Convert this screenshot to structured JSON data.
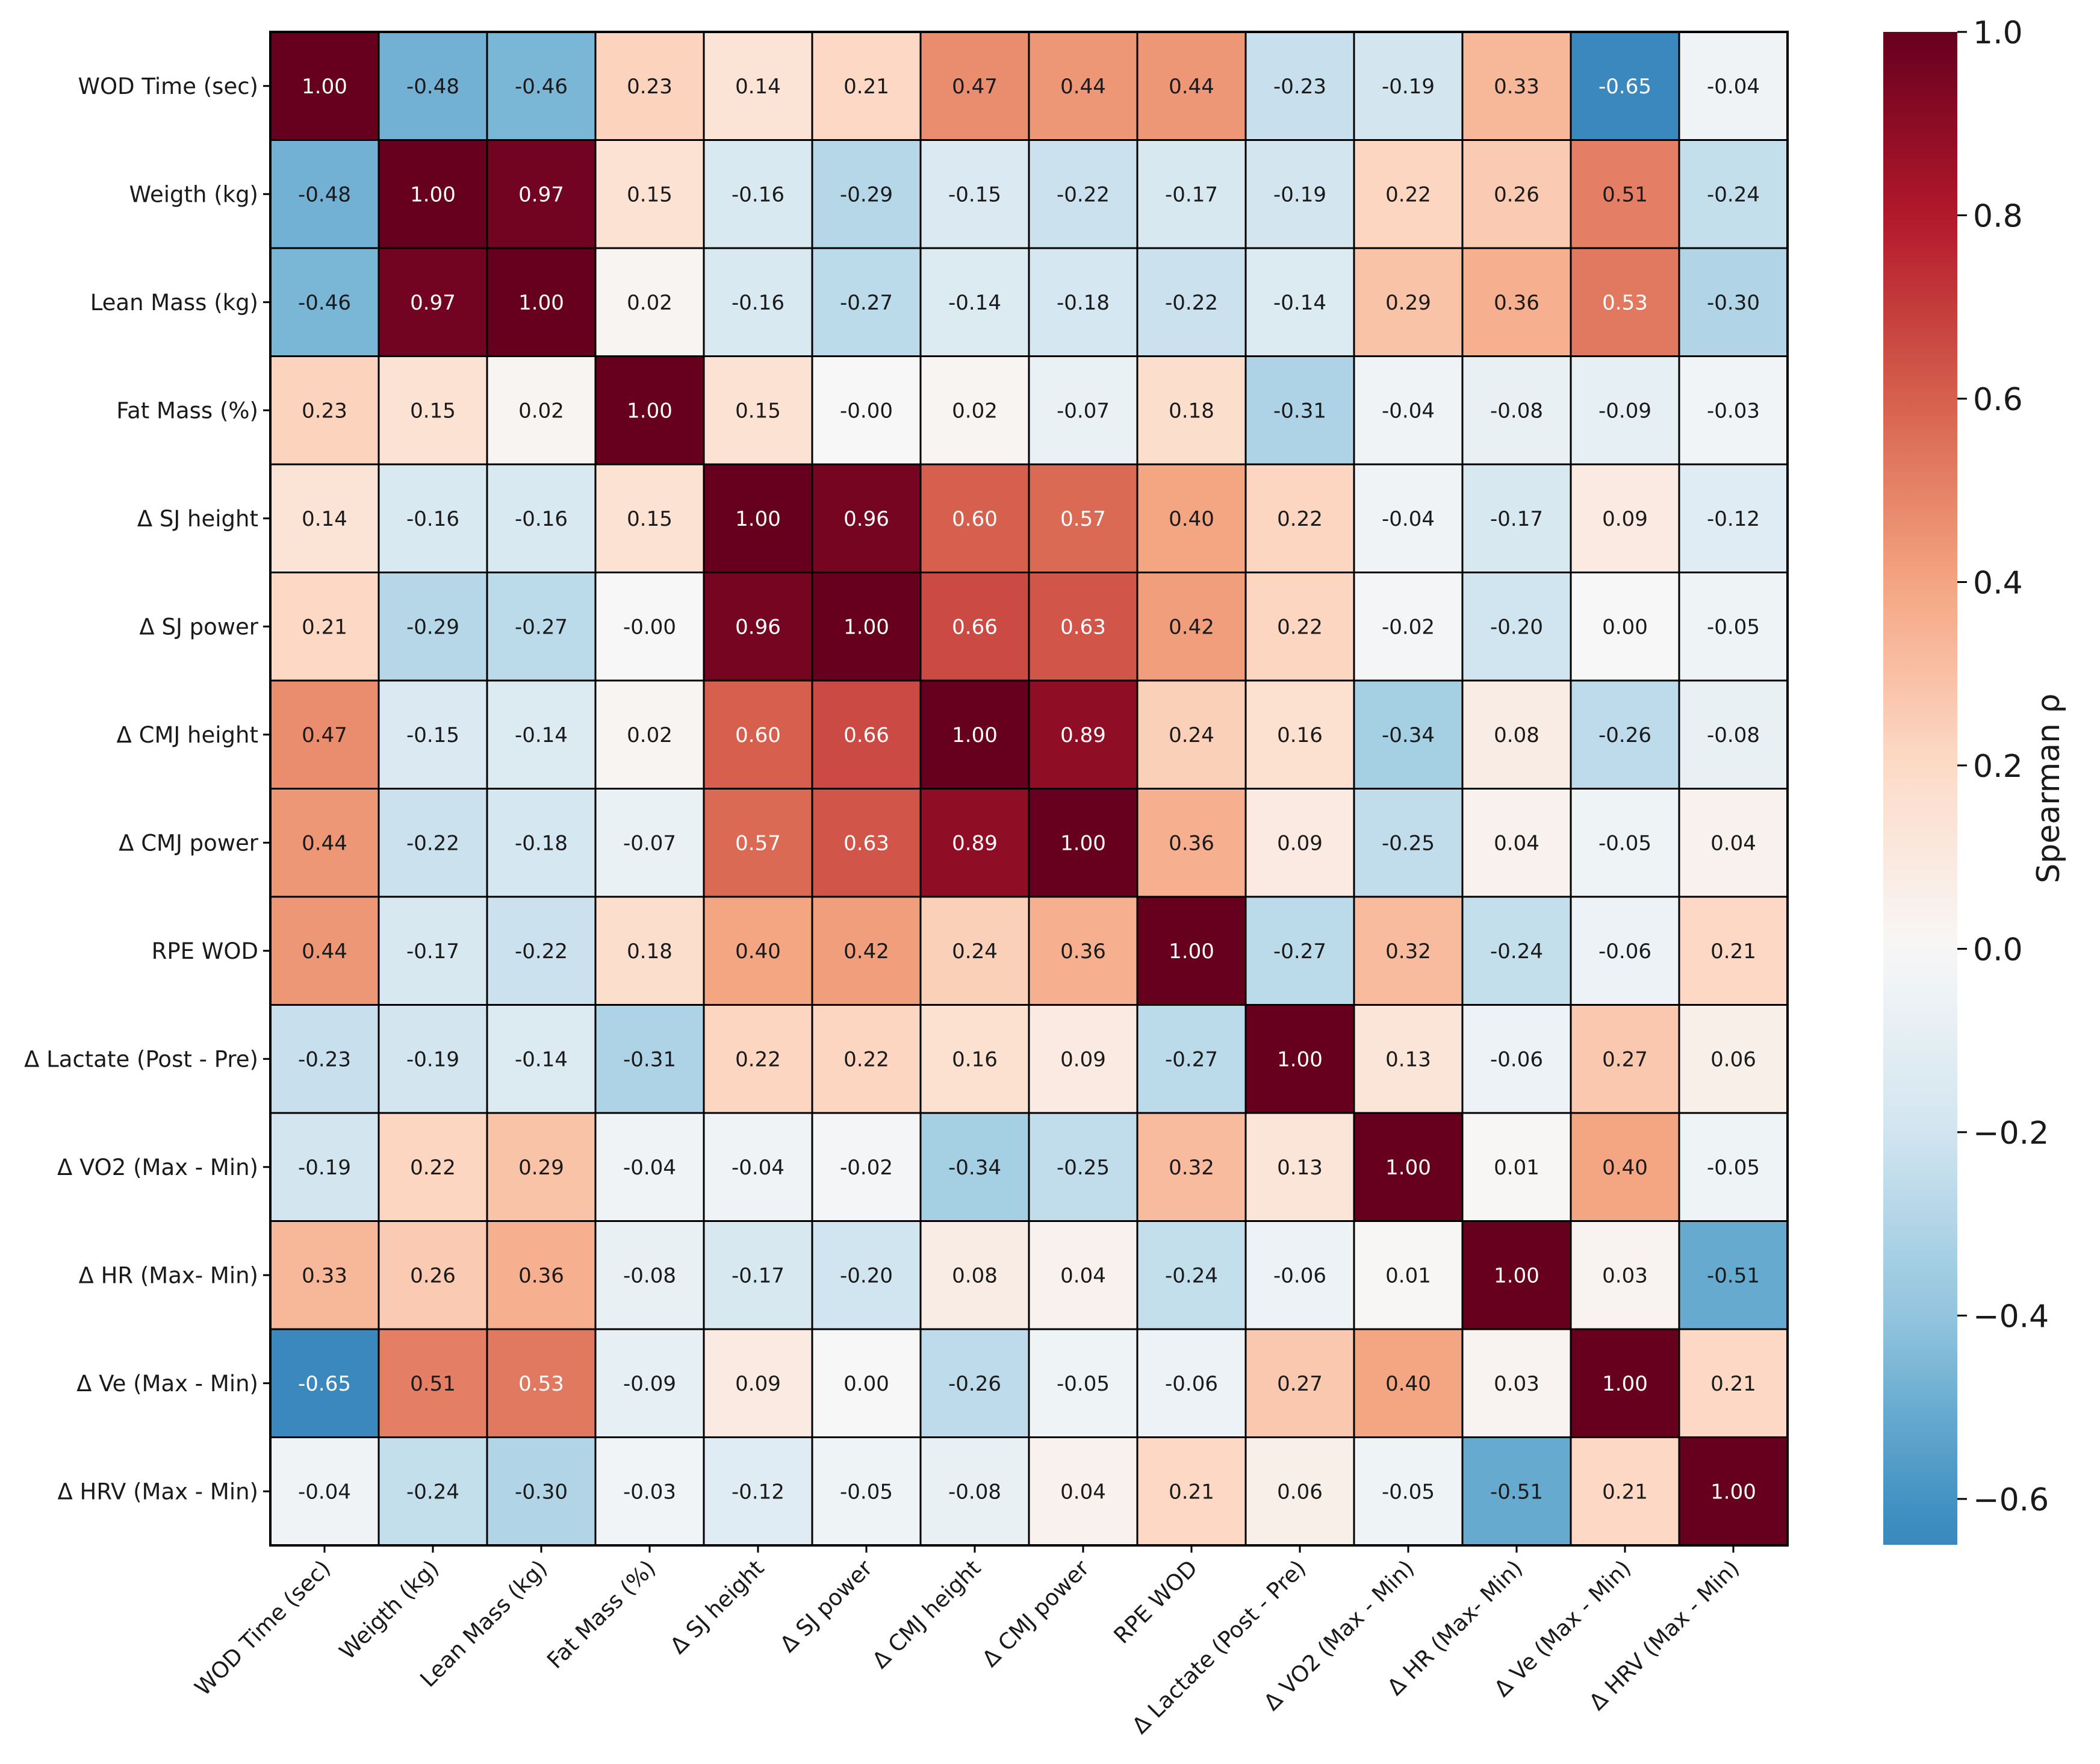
{
  "chart_data": {
    "type": "heatmap",
    "title": "",
    "xlabel": "",
    "ylabel": "",
    "variables": [
      "WOD Time (sec)",
      "Weigth (kg)",
      "Lean Mass (kg)",
      "Fat Mass (%)",
      "Δ SJ height",
      "Δ SJ power",
      "Δ CMJ height",
      "Δ CMJ power",
      "RPE WOD",
      "Δ Lactate (Post - Pre)",
      "Δ VO2 (Max - Min)",
      "Δ HR (Max- Min)",
      "Δ Ve (Max - Min)",
      "Δ HRV (Max - Min)"
    ],
    "values": [
      [
        1.0,
        -0.48,
        -0.46,
        0.23,
        0.14,
        0.21,
        0.47,
        0.44,
        0.44,
        -0.23,
        -0.19,
        0.33,
        -0.65,
        -0.04
      ],
      [
        -0.48,
        1.0,
        0.97,
        0.15,
        -0.16,
        -0.29,
        -0.15,
        -0.22,
        -0.17,
        -0.19,
        0.22,
        0.26,
        0.51,
        -0.24
      ],
      [
        -0.46,
        0.97,
        1.0,
        0.02,
        -0.16,
        -0.27,
        -0.14,
        -0.18,
        -0.22,
        -0.14,
        0.29,
        0.36,
        0.53,
        -0.3
      ],
      [
        0.23,
        0.15,
        0.02,
        1.0,
        0.15,
        -0.0,
        0.02,
        -0.07,
        0.18,
        -0.31,
        -0.04,
        -0.08,
        -0.09,
        -0.03
      ],
      [
        0.14,
        -0.16,
        -0.16,
        0.15,
        1.0,
        0.96,
        0.6,
        0.57,
        0.4,
        0.22,
        -0.04,
        -0.17,
        0.09,
        -0.12
      ],
      [
        0.21,
        -0.29,
        -0.27,
        -0.0,
        0.96,
        1.0,
        0.66,
        0.63,
        0.42,
        0.22,
        -0.02,
        -0.2,
        0.0,
        -0.05
      ],
      [
        0.47,
        -0.15,
        -0.14,
        0.02,
        0.6,
        0.66,
        1.0,
        0.89,
        0.24,
        0.16,
        -0.34,
        0.08,
        -0.26,
        -0.08
      ],
      [
        0.44,
        -0.22,
        -0.18,
        -0.07,
        0.57,
        0.63,
        0.89,
        1.0,
        0.36,
        0.09,
        -0.25,
        0.04,
        -0.05,
        0.04
      ],
      [
        0.44,
        -0.17,
        -0.22,
        0.18,
        0.4,
        0.42,
        0.24,
        0.36,
        1.0,
        -0.27,
        0.32,
        -0.24,
        -0.06,
        0.21
      ],
      [
        -0.23,
        -0.19,
        -0.14,
        -0.31,
        0.22,
        0.22,
        0.16,
        0.09,
        -0.27,
        1.0,
        0.13,
        -0.06,
        0.27,
        0.06
      ],
      [
        -0.19,
        0.22,
        0.29,
        -0.04,
        -0.04,
        -0.02,
        -0.34,
        -0.25,
        0.32,
        0.13,
        1.0,
        0.01,
        0.4,
        -0.05
      ],
      [
        0.33,
        0.26,
        0.36,
        -0.08,
        -0.17,
        -0.2,
        0.08,
        0.04,
        -0.24,
        -0.06,
        0.01,
        1.0,
        0.03,
        -0.51
      ],
      [
        -0.65,
        0.51,
        0.53,
        -0.09,
        0.09,
        0.0,
        -0.26,
        -0.05,
        -0.06,
        0.27,
        0.4,
        0.03,
        1.0,
        0.21
      ],
      [
        -0.04,
        -0.24,
        -0.3,
        -0.03,
        -0.12,
        -0.05,
        -0.08,
        0.04,
        0.21,
        0.06,
        -0.05,
        -0.51,
        0.21,
        1.0
      ]
    ],
    "cell_labels": [
      [
        "1.00",
        "-0.48",
        "-0.46",
        "0.23",
        "0.14",
        "0.21",
        "0.47",
        "0.44",
        "0.44",
        "-0.23",
        "-0.19",
        "0.33",
        "-0.65",
        "-0.04"
      ],
      [
        "-0.48",
        "1.00",
        "0.97",
        "0.15",
        "-0.16",
        "-0.29",
        "-0.15",
        "-0.22",
        "-0.17",
        "-0.19",
        "0.22",
        "0.26",
        "0.51",
        "-0.24"
      ],
      [
        "-0.46",
        "0.97",
        "1.00",
        "0.02",
        "-0.16",
        "-0.27",
        "-0.14",
        "-0.18",
        "-0.22",
        "-0.14",
        "0.29",
        "0.36",
        "0.53",
        "-0.30"
      ],
      [
        "0.23",
        "0.15",
        "0.02",
        "1.00",
        "0.15",
        "-0.00",
        "0.02",
        "-0.07",
        "0.18",
        "-0.31",
        "-0.04",
        "-0.08",
        "-0.09",
        "-0.03"
      ],
      [
        "0.14",
        "-0.16",
        "-0.16",
        "0.15",
        "1.00",
        "0.96",
        "0.60",
        "0.57",
        "0.40",
        "0.22",
        "-0.04",
        "-0.17",
        "0.09",
        "-0.12"
      ],
      [
        "0.21",
        "-0.29",
        "-0.27",
        "-0.00",
        "0.96",
        "1.00",
        "0.66",
        "0.63",
        "0.42",
        "0.22",
        "-0.02",
        "-0.20",
        "0.00",
        "-0.05"
      ],
      [
        "0.47",
        "-0.15",
        "-0.14",
        "0.02",
        "0.60",
        "0.66",
        "1.00",
        "0.89",
        "0.24",
        "0.16",
        "-0.34",
        "0.08",
        "-0.26",
        "-0.08"
      ],
      [
        "0.44",
        "-0.22",
        "-0.18",
        "-0.07",
        "0.57",
        "0.63",
        "0.89",
        "1.00",
        "0.36",
        "0.09",
        "-0.25",
        "0.04",
        "-0.05",
        "0.04"
      ],
      [
        "0.44",
        "-0.17",
        "-0.22",
        "0.18",
        "0.40",
        "0.42",
        "0.24",
        "0.36",
        "1.00",
        "-0.27",
        "0.32",
        "-0.24",
        "-0.06",
        "0.21"
      ],
      [
        "-0.23",
        "-0.19",
        "-0.14",
        "-0.31",
        "0.22",
        "0.22",
        "0.16",
        "0.09",
        "-0.27",
        "1.00",
        "0.13",
        "-0.06",
        "0.27",
        "0.06"
      ],
      [
        "-0.19",
        "0.22",
        "0.29",
        "-0.04",
        "-0.04",
        "-0.02",
        "-0.34",
        "-0.25",
        "0.32",
        "0.13",
        "1.00",
        "0.01",
        "0.40",
        "-0.05"
      ],
      [
        "0.33",
        "0.26",
        "0.36",
        "-0.08",
        "-0.17",
        "-0.20",
        "0.08",
        "0.04",
        "-0.24",
        "-0.06",
        "0.01",
        "1.00",
        "0.03",
        "-0.51"
      ],
      [
        "-0.65",
        "0.51",
        "0.53",
        "-0.09",
        "0.09",
        "0.00",
        "-0.26",
        "-0.05",
        "-0.06",
        "0.27",
        "0.40",
        "0.03",
        "1.00",
        "0.21"
      ],
      [
        "-0.04",
        "-0.24",
        "-0.30",
        "-0.03",
        "-0.12",
        "-0.05",
        "-0.08",
        "0.04",
        "0.21",
        "0.06",
        "-0.05",
        "-0.51",
        "0.21",
        "1.00"
      ]
    ],
    "colorbar": {
      "label": "Spearman ρ",
      "range": [
        -0.65,
        1.0
      ],
      "ticks": [
        -0.6,
        -0.4,
        -0.2,
        0.0,
        0.2,
        0.4,
        0.6,
        0.8,
        1.0
      ],
      "tick_labels": [
        "−0.6",
        "−0.4",
        "−0.2",
        "0.0",
        "0.2",
        "0.4",
        "0.6",
        "0.8",
        "1.0"
      ],
      "colormap": "RdBu_r"
    },
    "colormap_stops": [
      {
        "v": 0.0,
        "color": "#053061"
      },
      {
        "v": 0.1,
        "color": "#2166ac"
      },
      {
        "v": 0.2,
        "color": "#4393c3"
      },
      {
        "v": 0.3,
        "color": "#92c5de"
      },
      {
        "v": 0.4,
        "color": "#d1e5f0"
      },
      {
        "v": 0.5,
        "color": "#f7f7f7"
      },
      {
        "v": 0.6,
        "color": "#fddbc7"
      },
      {
        "v": 0.7,
        "color": "#f4a582"
      },
      {
        "v": 0.8,
        "color": "#d6604d"
      },
      {
        "v": 0.9,
        "color": "#b2182b"
      },
      {
        "v": 1.0,
        "color": "#67001f"
      }
    ],
    "colormap_domain": [
      -1.0,
      1.0
    ],
    "grid_line_color": "#000000",
    "text_color_dark": "#1a1a1a",
    "text_color_light": "#ffffff"
  }
}
